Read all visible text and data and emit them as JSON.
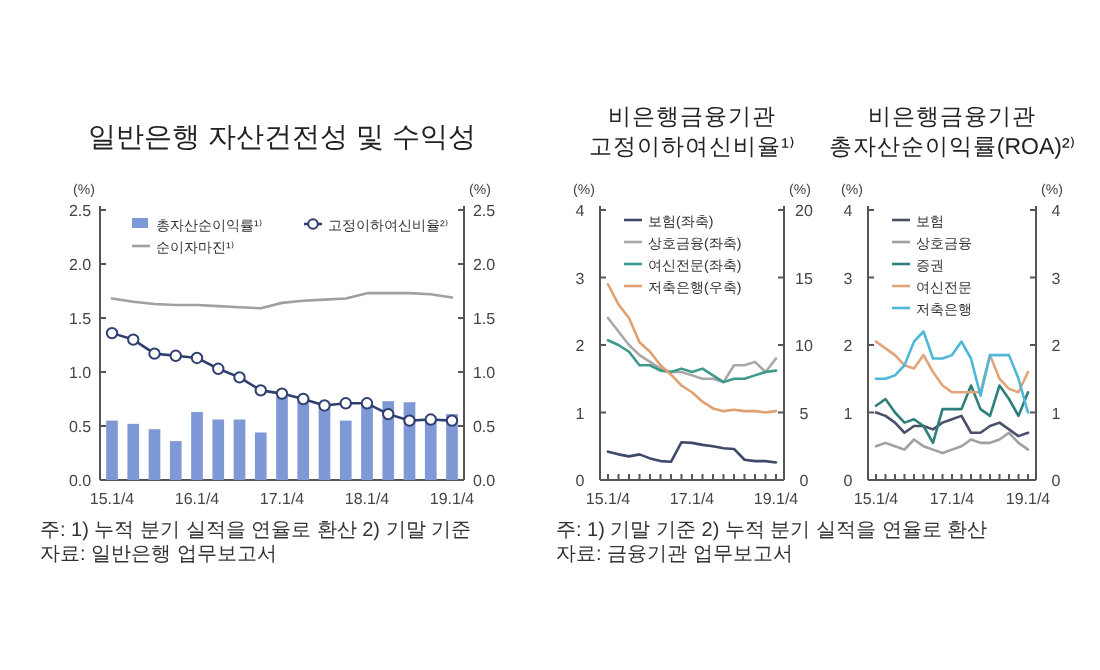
{
  "chart_data": [
    {
      "type": "bar",
      "title": "일반은행 자산건전성 및 수익성",
      "ylabel": "(%)",
      "y2label": "(%)",
      "categories": [
        "15.1/4",
        null,
        null,
        null,
        "16.1/4",
        null,
        null,
        null,
        "17.1/4",
        null,
        null,
        null,
        "18.1/4",
        null,
        null,
        null,
        "19.1/4"
      ],
      "series": [
        {
          "name": "총자산순이익률¹⁾",
          "type": "bar",
          "color": "#7f98d6",
          "values": [
            0.55,
            0.52,
            0.47,
            0.36,
            0.63,
            0.56,
            0.56,
            0.44,
            0.77,
            0.73,
            0.68,
            0.55,
            0.73,
            0.73,
            0.72,
            0.59,
            0.61
          ]
        },
        {
          "name": "고정이하여신비율²⁾",
          "type": "line",
          "axis": "y2",
          "marker": "circle",
          "color": "#2f3f6f",
          "values": [
            1.36,
            1.3,
            1.17,
            1.15,
            1.13,
            1.03,
            0.95,
            0.83,
            0.8,
            0.75,
            0.69,
            0.71,
            0.71,
            0.61,
            0.55,
            0.56,
            0.55
          ]
        },
        {
          "name": "순이자마진¹⁾",
          "type": "line",
          "color": "#a0a0a0",
          "values": [
            1.68,
            1.65,
            1.63,
            1.62,
            1.62,
            1.61,
            1.6,
            1.59,
            1.64,
            1.66,
            1.67,
            1.68,
            1.73,
            1.73,
            1.73,
            1.72,
            1.69
          ]
        }
      ],
      "ylim": [
        0,
        2.5
      ],
      "yticks": [
        {
          "value": 0,
          "label": "0.0"
        },
        {
          "value": 0.5,
          "label": "0.5"
        },
        {
          "value": 1,
          "label": "1.0"
        },
        {
          "value": 1.5,
          "label": "1.5"
        },
        {
          "value": 2,
          "label": "2.0"
        },
        {
          "value": 2.5,
          "label": "2.5"
        }
      ],
      "y2lim": [
        0,
        2.5
      ],
      "y2ticks": [
        {
          "value": 0,
          "label": "0.0"
        },
        {
          "value": 0.5,
          "label": "0.5"
        },
        {
          "value": 1,
          "label": "1.0"
        },
        {
          "value": 1.5,
          "label": "1.5"
        },
        {
          "value": 2,
          "label": "2.0"
        },
        {
          "value": 2.5,
          "label": "2.5"
        }
      ],
      "legend": "top",
      "grid": false,
      "annotations": [
        "주: 1) 누적 분기 실적을 연율로 환산      2) 기말 기준",
        "자료: 일반은행 업무보고서"
      ]
    },
    {
      "type": "line",
      "title": "비은행금융기관 고정이하여신비율¹⁾",
      "ylabel": "(%)",
      "y2label": "(%)",
      "categories": [
        "15.1/4",
        null,
        null,
        null,
        null,
        null,
        null,
        null,
        "17.1/4",
        null,
        null,
        null,
        null,
        null,
        null,
        null,
        "19.1/4"
      ],
      "series": [
        {
          "name": "보험(좌축)",
          "color": "#3f4a6b",
          "values": [
            0.42,
            0.38,
            0.35,
            0.38,
            0.32,
            0.28,
            0.27,
            0.56,
            0.55,
            0.52,
            0.5,
            0.47,
            0.46,
            0.3,
            0.28,
            0.28,
            0.26
          ]
        },
        {
          "name": "상호금융(좌축)",
          "color": "#a8a8a8",
          "values": [
            2.4,
            2.2,
            2.0,
            1.85,
            1.75,
            1.65,
            1.6,
            1.6,
            1.55,
            1.5,
            1.5,
            1.45,
            1.7,
            1.7,
            1.75,
            1.6,
            1.8
          ]
        },
        {
          "name": "여신전문(좌축)",
          "color": "#3c9a8a",
          "values": [
            2.07,
            2.0,
            1.9,
            1.7,
            1.7,
            1.62,
            1.6,
            1.65,
            1.6,
            1.65,
            1.55,
            1.45,
            1.5,
            1.5,
            1.55,
            1.6,
            1.62
          ]
        },
        {
          "name": "저축은행(우축)",
          "color": "#e0a070",
          "axis": "y2",
          "values": [
            14.5,
            13,
            12,
            10.2,
            9.5,
            8.5,
            7.8,
            7,
            6.5,
            5.8,
            5.3,
            5.1,
            5.2,
            5.1,
            5.1,
            5.0,
            5.1
          ]
        }
      ],
      "ylim": [
        0,
        4
      ],
      "yticks": [
        0,
        1,
        2,
        3,
        4
      ],
      "y2lim": [
        0,
        20
      ],
      "y2ticks": [
        0,
        5,
        10,
        15,
        20
      ],
      "legend": "top",
      "grid": false,
      "annotations": [
        "주: 1) 기말 기준     2) 누적 분기 실적을 연율로 환산",
        "자료: 금융기관 업무보고서"
      ]
    },
    {
      "type": "line",
      "title": "비은행금융기관 총자산순이익률(ROA)²⁾",
      "ylabel": "(%)",
      "y2label": "(%)",
      "categories": [
        "15.1/4",
        null,
        null,
        null,
        null,
        null,
        null,
        null,
        "17.1/4",
        null,
        null,
        null,
        null,
        null,
        null,
        null,
        "19.1/4"
      ],
      "series": [
        {
          "name": "보험",
          "color": "#4a4f6a",
          "values": [
            1.0,
            0.95,
            0.85,
            0.7,
            0.8,
            0.8,
            0.75,
            0.85,
            0.9,
            0.95,
            0.7,
            0.7,
            0.8,
            0.85,
            0.75,
            0.65,
            0.7
          ]
        },
        {
          "name": "상호금융",
          "color": "#a0a0a0",
          "values": [
            0.5,
            0.55,
            0.5,
            0.45,
            0.6,
            0.5,
            0.45,
            0.4,
            0.45,
            0.5,
            0.6,
            0.55,
            0.55,
            0.6,
            0.7,
            0.55,
            0.45
          ]
        },
        {
          "name": "증권",
          "color": "#2f7f7a",
          "values": [
            1.1,
            1.2,
            1.0,
            0.85,
            0.9,
            0.8,
            0.55,
            1.05,
            1.05,
            1.05,
            1.4,
            1.05,
            0.95,
            1.4,
            1.2,
            0.95,
            1.3
          ]
        },
        {
          "name": "여신전문",
          "color": "#e3a47a",
          "values": [
            2.05,
            1.95,
            1.85,
            1.7,
            1.65,
            1.85,
            1.6,
            1.4,
            1.3,
            1.3,
            1.3,
            1.3,
            1.85,
            1.5,
            1.35,
            1.3,
            1.6
          ]
        },
        {
          "name": "저축은행",
          "color": "#4fb8d8",
          "values": [
            1.5,
            1.5,
            1.55,
            1.7,
            2.05,
            2.2,
            1.8,
            1.8,
            1.85,
            2.05,
            1.8,
            1.25,
            1.85,
            1.85,
            1.85,
            1.5,
            1.0
          ]
        }
      ],
      "ylim": [
        0,
        4
      ],
      "yticks": [
        0,
        1,
        2,
        3,
        4
      ],
      "y2lim": [
        0,
        4
      ],
      "y2ticks": [
        0,
        1,
        2,
        3,
        4
      ],
      "legend": "top",
      "grid": false
    }
  ]
}
